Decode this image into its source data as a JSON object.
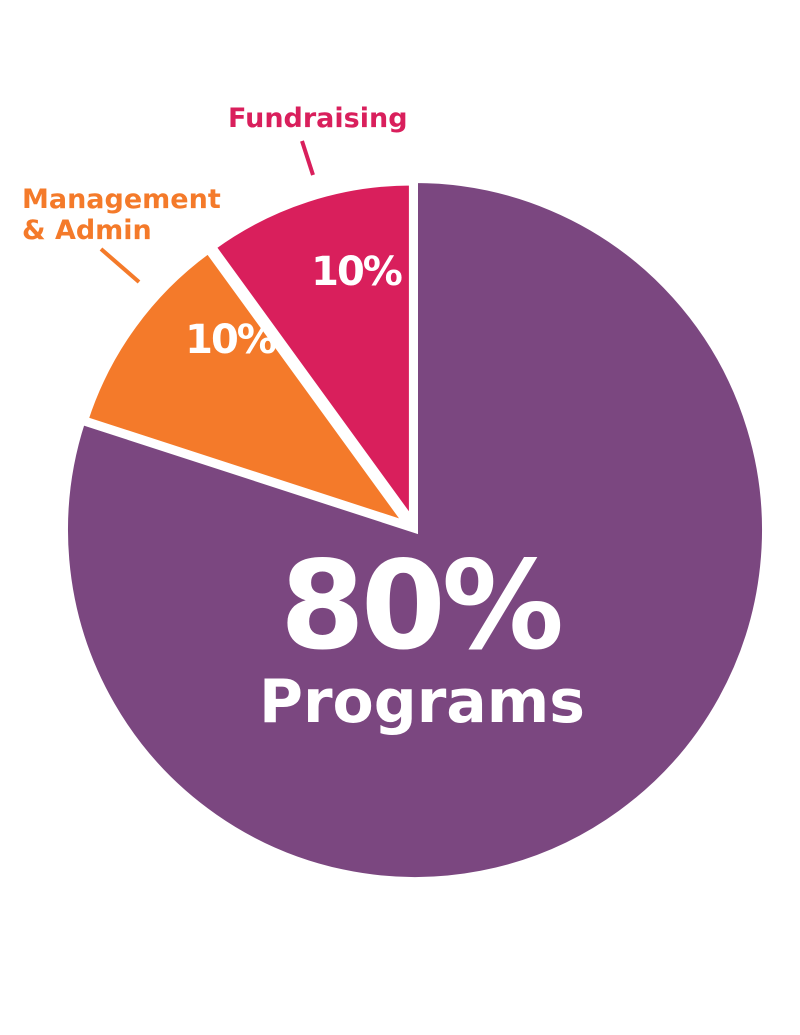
{
  "chart_data": {
    "type": "pie",
    "slices": [
      {
        "label": "Programs",
        "value": 80,
        "value_label": "80%",
        "color": "#7b4780"
      },
      {
        "label": "Management & Admin",
        "label_lines": [
          "Management",
          "& Admin"
        ],
        "value": 10,
        "value_label": "10%",
        "color": "#f47a2a"
      },
      {
        "label": "Fundraising",
        "value": 10,
        "value_label": "10%",
        "color": "#d91f5c"
      }
    ]
  }
}
